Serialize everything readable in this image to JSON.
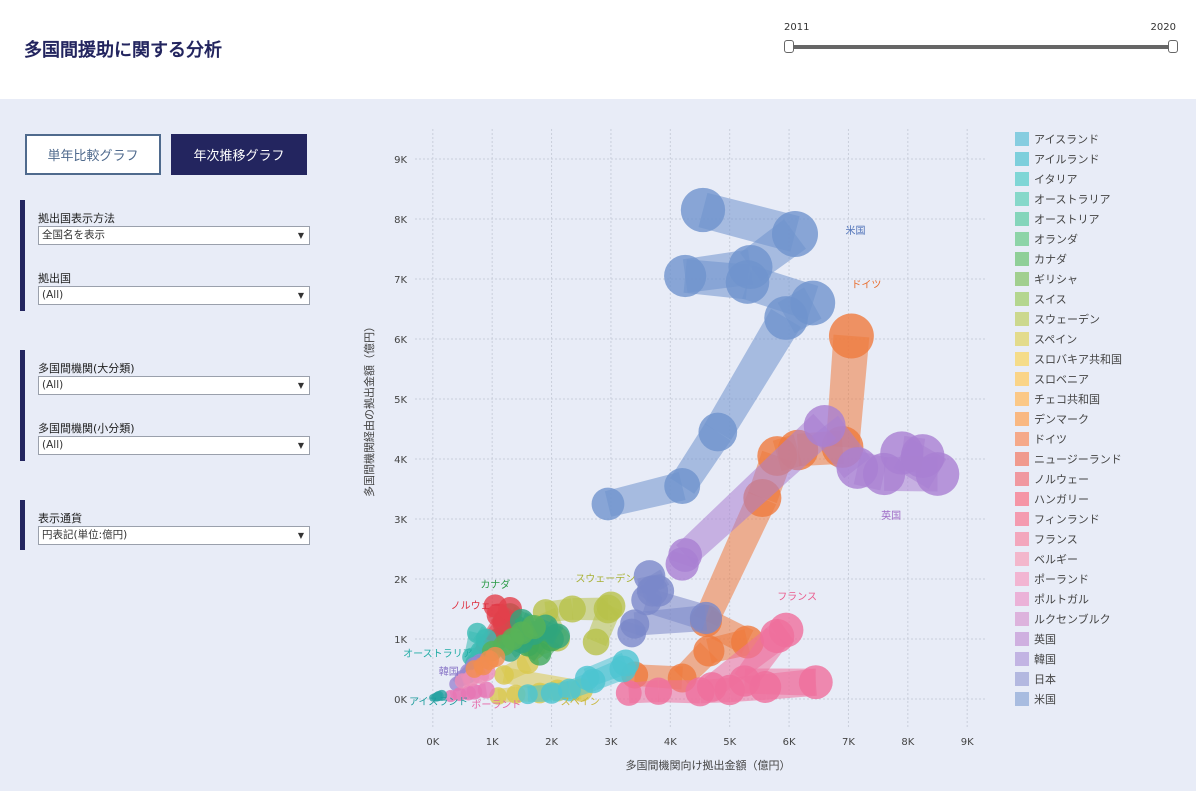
{
  "page": {
    "title": "多国間援助に関する分析"
  },
  "slider": {
    "min_label": "2011",
    "max_label": "2020"
  },
  "buttons": {
    "single_year": "単年比較グラフ",
    "trend": "年次推移グラフ"
  },
  "filters": {
    "display_method": {
      "label": "拠出国表示方法",
      "value": "全国名を表示"
    },
    "country": {
      "label": "拠出国",
      "value": "(All)"
    },
    "org_major": {
      "label": "多国間機関(大分類)",
      "value": "(All)"
    },
    "org_minor": {
      "label": "多国間機関(小分類)",
      "value": "(All)"
    },
    "currency": {
      "label": "表示通貨",
      "value": "円表記(単位:億円)"
    }
  },
  "chart_data": {
    "type": "scatter",
    "xlabel": "多国間機関向け拠出金額（億円）",
    "ylabel": "多国間機関経由の拠出金額（億円）",
    "xlim": [
      -300,
      9300
    ],
    "ylim": [
      -500,
      9500
    ],
    "xticks": [
      0,
      1000,
      2000,
      3000,
      4000,
      5000,
      6000,
      7000,
      8000,
      9000
    ],
    "xtick_labels": [
      "0K",
      "1K",
      "2K",
      "3K",
      "4K",
      "5K",
      "6K",
      "7K",
      "8K",
      "9K"
    ],
    "yticks": [
      0,
      1000,
      2000,
      3000,
      4000,
      5000,
      6000,
      7000,
      8000,
      9000
    ],
    "ytick_labels": [
      "0K",
      "1K",
      "2K",
      "3K",
      "4K",
      "5K",
      "6K",
      "7K",
      "8K",
      "9K"
    ],
    "grid": true,
    "legend_position": "right",
    "legend": [
      {
        "name": "アイスランド",
        "color": "#86cde0"
      },
      {
        "name": "アイルランド",
        "color": "#7dcfdc"
      },
      {
        "name": "イタリア",
        "color": "#7fd6d6"
      },
      {
        "name": "オーストラリア",
        "color": "#86d8ca"
      },
      {
        "name": "オーストリア",
        "color": "#84d5bb"
      },
      {
        "name": "オランダ",
        "color": "#8dd4a8"
      },
      {
        "name": "カナダ",
        "color": "#8fcf98"
      },
      {
        "name": "ギリシャ",
        "color": "#a1cf8f"
      },
      {
        "name": "スイス",
        "color": "#b4d68f"
      },
      {
        "name": "スウェーデン",
        "color": "#ccd88e"
      },
      {
        "name": "スペイン",
        "color": "#e3db8c"
      },
      {
        "name": "スロバキア共和国",
        "color": "#f5dc8a"
      },
      {
        "name": "スロベニア",
        "color": "#fad488"
      },
      {
        "name": "チェコ共和国",
        "color": "#fbc887"
      },
      {
        "name": "デンマーク",
        "color": "#f9b882"
      },
      {
        "name": "ドイツ",
        "color": "#f5a98a"
      },
      {
        "name": "ニュージーランド",
        "color": "#f09a8e"
      },
      {
        "name": "ノルウェー",
        "color": "#f098a0"
      },
      {
        "name": "ハンガリー",
        "color": "#f595a6"
      },
      {
        "name": "フィンランド",
        "color": "#f49bb0"
      },
      {
        "name": "フランス",
        "color": "#f3a7bd"
      },
      {
        "name": "ベルギー",
        "color": "#f3b7cc"
      },
      {
        "name": "ポーランド",
        "color": "#f2b5d2"
      },
      {
        "name": "ポルトガル",
        "color": "#ebb2d8"
      },
      {
        "name": "ルクセンブルク",
        "color": "#ddb3dd"
      },
      {
        "name": "英国",
        "color": "#cfb0e0"
      },
      {
        "name": "韓国",
        "color": "#c2b4e3"
      },
      {
        "name": "日本",
        "color": "#b3b8e0"
      },
      {
        "name": "米国",
        "color": "#a8bce0"
      }
    ],
    "series": [
      {
        "name": "米国",
        "color": "#6f94cd",
        "points": [
          [
            2950,
            3250
          ],
          [
            4200,
            3550
          ],
          [
            4800,
            4450
          ],
          [
            5950,
            6350
          ],
          [
            6400,
            6600
          ],
          [
            5300,
            6950
          ],
          [
            4250,
            7050
          ],
          [
            5350,
            7200
          ],
          [
            6100,
            7750
          ],
          [
            4550,
            8150
          ]
        ]
      },
      {
        "name": "ドイツ",
        "color": "#ef7a3d",
        "points": [
          [
            3400,
            400
          ],
          [
            4200,
            350
          ],
          [
            4650,
            800
          ],
          [
            5300,
            950
          ],
          [
            4600,
            1300
          ],
          [
            5550,
            3350
          ],
          [
            5800,
            4050
          ],
          [
            6150,
            4150
          ],
          [
            6900,
            4200
          ],
          [
            7050,
            6050
          ]
        ]
      },
      {
        "name": "英国",
        "color": "#a97fd2",
        "points": [
          [
            4200,
            2250
          ],
          [
            4250,
            2400
          ],
          [
            6600,
            4550
          ],
          [
            7150,
            3850
          ],
          [
            7600,
            3750
          ],
          [
            8500,
            3750
          ],
          [
            7900,
            4100
          ],
          [
            8250,
            4050
          ]
        ]
      },
      {
        "name": "日本",
        "color": "#7b88c9",
        "points": [
          [
            3350,
            1100
          ],
          [
            3400,
            1250
          ],
          [
            4600,
            1350
          ],
          [
            3600,
            1650
          ],
          [
            3700,
            1800
          ],
          [
            3650,
            2050
          ],
          [
            3800,
            1800
          ]
        ]
      },
      {
        "name": "フランス",
        "color": "#ef6f9c",
        "points": [
          [
            3300,
            100
          ],
          [
            3800,
            130
          ],
          [
            4500,
            120
          ],
          [
            5000,
            150
          ],
          [
            5600,
            200
          ],
          [
            6450,
            280
          ],
          [
            5250,
            300
          ],
          [
            5800,
            1050
          ],
          [
            5950,
            1150
          ],
          [
            4700,
            200
          ]
        ]
      },
      {
        "name": "スウェーデン",
        "color": "#b8c24a",
        "points": [
          [
            1700,
            850
          ],
          [
            2100,
            1000
          ],
          [
            1900,
            1450
          ],
          [
            2350,
            1500
          ],
          [
            2950,
            1500
          ],
          [
            3000,
            1550
          ],
          [
            2750,
            950
          ]
        ]
      },
      {
        "name": "スペイン",
        "color": "#d9c84d",
        "points": [
          [
            1100,
            50
          ],
          [
            1400,
            80
          ],
          [
            1800,
            100
          ],
          [
            2100,
            140
          ],
          [
            2500,
            150
          ],
          [
            1200,
            400
          ],
          [
            1600,
            600
          ]
        ]
      },
      {
        "name": "カナダ",
        "color": "#3fa95a",
        "points": [
          [
            900,
            800
          ],
          [
            1100,
            1000
          ],
          [
            1400,
            1200
          ],
          [
            1600,
            900
          ],
          [
            1800,
            750
          ],
          [
            2000,
            1000
          ],
          [
            1300,
            1400
          ],
          [
            1200,
            1300
          ]
        ]
      },
      {
        "name": "ノルウェー",
        "color": "#e2404b",
        "points": [
          [
            1050,
            1550
          ],
          [
            1100,
            1400
          ],
          [
            1200,
            1250
          ],
          [
            900,
            900
          ],
          [
            700,
            600
          ],
          [
            1300,
            1500
          ]
        ]
      },
      {
        "name": "オランダ",
        "color": "#2fa57d",
        "points": [
          [
            1300,
            800
          ],
          [
            1500,
            950
          ],
          [
            1700,
            1100
          ],
          [
            1900,
            1200
          ],
          [
            2100,
            1050
          ],
          [
            1500,
            1300
          ]
        ]
      },
      {
        "name": "オーストラリア",
        "color": "#3bbcb4",
        "points": [
          [
            600,
            400
          ],
          [
            700,
            600
          ],
          [
            800,
            800
          ],
          [
            900,
            1000
          ],
          [
            750,
            1100
          ],
          [
            650,
            700
          ]
        ]
      },
      {
        "name": "アイルランド",
        "color": "#4cc4d1",
        "points": [
          [
            1600,
            80
          ],
          [
            2000,
            100
          ],
          [
            2300,
            150
          ],
          [
            2700,
            300
          ],
          [
            3200,
            500
          ],
          [
            3250,
            600
          ],
          [
            2600,
            350
          ]
        ]
      },
      {
        "name": "韓国",
        "color": "#9a86d0",
        "points": [
          [
            400,
            250
          ],
          [
            500,
            350
          ],
          [
            600,
            450
          ],
          [
            700,
            550
          ],
          [
            800,
            600
          ]
        ]
      },
      {
        "name": "ポーランド",
        "color": "#e675b4",
        "points": [
          [
            300,
            50
          ],
          [
            450,
            80
          ],
          [
            600,
            100
          ],
          [
            700,
            120
          ],
          [
            900,
            150
          ]
        ]
      },
      {
        "name": "アイスランド",
        "color": "#29a3a3",
        "points": [
          [
            0,
            20
          ],
          [
            50,
            30
          ],
          [
            80,
            40
          ],
          [
            100,
            50
          ],
          [
            150,
            60
          ]
        ]
      },
      {
        "name": "スイス",
        "color": "#58b358",
        "points": [
          [
            1000,
            800
          ],
          [
            1200,
            900
          ],
          [
            1350,
            1000
          ],
          [
            1500,
            1100
          ],
          [
            1700,
            1200
          ]
        ]
      },
      {
        "name": "ベルギー",
        "color": "#ec8db6",
        "points": [
          [
            500,
            300
          ],
          [
            650,
            350
          ],
          [
            800,
            400
          ],
          [
            900,
            450
          ]
        ]
      },
      {
        "name": "デンマーク",
        "color": "#f28d4f",
        "points": [
          [
            700,
            500
          ],
          [
            850,
            550
          ],
          [
            950,
            650
          ],
          [
            1050,
            700
          ]
        ]
      }
    ],
    "annotations": [
      {
        "text": "米国",
        "x": 6950,
        "y": 7750,
        "color": "#4f72b8"
      },
      {
        "text": "ドイツ",
        "x": 7050,
        "y": 6850,
        "color": "#e86d2e"
      },
      {
        "text": "英国",
        "x": 7550,
        "y": 3000,
        "color": "#9f6cc6"
      },
      {
        "text": "フランス",
        "x": 5800,
        "y": 1650,
        "color": "#ea5b8d"
      },
      {
        "text": "スウェーデン",
        "x": 2400,
        "y": 1950,
        "color": "#a8b134"
      },
      {
        "text": "カナダ",
        "x": 800,
        "y": 1850,
        "color": "#2e9c49"
      },
      {
        "text": "ノルウェー",
        "x": 300,
        "y": 1500,
        "color": "#de3040"
      },
      {
        "text": "オーストラリア",
        "x": -500,
        "y": 700,
        "color": "#22aca5"
      },
      {
        "text": "韓国",
        "x": 100,
        "y": 400,
        "color": "#8874c6"
      },
      {
        "text": "アイスランド",
        "x": -400,
        "y": -100,
        "color": "#1e9d9d"
      },
      {
        "text": "ポーランド",
        "x": 650,
        "y": -150,
        "color": "#e665a6"
      },
      {
        "text": "スペイン",
        "x": 2150,
        "y": -100,
        "color": "#c9b63b"
      }
    ]
  }
}
